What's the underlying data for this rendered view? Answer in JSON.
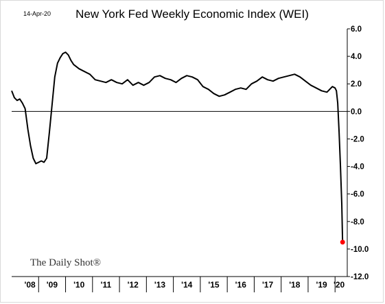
{
  "header": {
    "date": "14-Apr-20",
    "title": "New York Fed Weekly Economic Index (WEI)"
  },
  "branding": {
    "watermark": "The Daily Shot®"
  },
  "chart_data": {
    "type": "line",
    "title": "New York Fed Weekly Economic Index (WEI)",
    "xlabel": "",
    "ylabel": "",
    "ylim": [
      -12,
      6
    ],
    "yticks": [
      6.0,
      4.0,
      2.0,
      0.0,
      -2.0,
      -4.0,
      -6.0,
      -8.0,
      -10.0,
      -12.0
    ],
    "ytick_labels": [
      "6.0",
      "4.0",
      "2.0",
      "0.0",
      "-2.0",
      "-4.0",
      "-6.0",
      "-8.0",
      "-10.0",
      "-12.0"
    ],
    "y_axis_position": "right",
    "xlim": [
      2008.0,
      2020.3
    ],
    "x_tick_labels": [
      "'08",
      "'09",
      "'10",
      "'11",
      "'12",
      "'13",
      "'14",
      "'15",
      "'16",
      "'17",
      "'18",
      "'19",
      "'20"
    ],
    "x_tick_positions": [
      2008,
      2009,
      2010,
      2011,
      2012,
      2013,
      2014,
      2015,
      2016,
      2017,
      2018,
      2019,
      2020
    ],
    "zero_line": true,
    "grid": false,
    "legend": "none",
    "series_color": "#000000",
    "highlight_color": "#ff0000",
    "series": [
      {
        "x": [
          2008.0,
          2008.1,
          2008.2,
          2008.3,
          2008.4,
          2008.5,
          2008.6,
          2008.7,
          2008.8,
          2008.9,
          2009.0,
          2009.1,
          2009.2,
          2009.3,
          2009.4,
          2009.5,
          2009.6,
          2009.7,
          2009.8,
          2009.9,
          2010.0,
          2010.1,
          2010.2,
          2010.3,
          2010.5,
          2010.7,
          2010.9,
          2011.1,
          2011.3,
          2011.5,
          2011.7,
          2011.9,
          2012.1,
          2012.3,
          2012.5,
          2012.7,
          2012.9,
          2013.1,
          2013.3,
          2013.5,
          2013.7,
          2013.9,
          2014.1,
          2014.3,
          2014.5,
          2014.7,
          2014.9,
          2015.1,
          2015.3,
          2015.5,
          2015.7,
          2015.9,
          2016.1,
          2016.3,
          2016.5,
          2016.7,
          2016.9,
          2017.1,
          2017.3,
          2017.5,
          2017.7,
          2017.9,
          2018.1,
          2018.3,
          2018.5,
          2018.7,
          2018.9,
          2019.1,
          2019.3,
          2019.5,
          2019.7,
          2019.9,
          2020.0,
          2020.05,
          2020.1,
          2020.15,
          2020.2,
          2020.25,
          2020.28
        ],
        "values": [
          1.5,
          1.0,
          0.8,
          0.9,
          0.6,
          0.2,
          -1.3,
          -2.5,
          -3.4,
          -3.8,
          -3.7,
          -3.6,
          -3.7,
          -3.4,
          -1.5,
          0.5,
          2.5,
          3.5,
          3.9,
          4.2,
          4.3,
          4.1,
          3.7,
          3.4,
          3.1,
          2.9,
          2.7,
          2.3,
          2.2,
          2.1,
          2.3,
          2.1,
          2.0,
          2.3,
          1.9,
          2.1,
          1.9,
          2.1,
          2.5,
          2.6,
          2.4,
          2.3,
          2.1,
          2.4,
          2.6,
          2.5,
          2.3,
          1.8,
          1.6,
          1.3,
          1.1,
          1.2,
          1.4,
          1.6,
          1.7,
          1.6,
          2.0,
          2.2,
          2.5,
          2.3,
          2.2,
          2.4,
          2.5,
          2.6,
          2.7,
          2.5,
          2.2,
          1.9,
          1.7,
          1.5,
          1.4,
          1.8,
          1.7,
          1.5,
          0.6,
          -1.5,
          -4.0,
          -6.7,
          -9.5
        ]
      }
    ]
  }
}
